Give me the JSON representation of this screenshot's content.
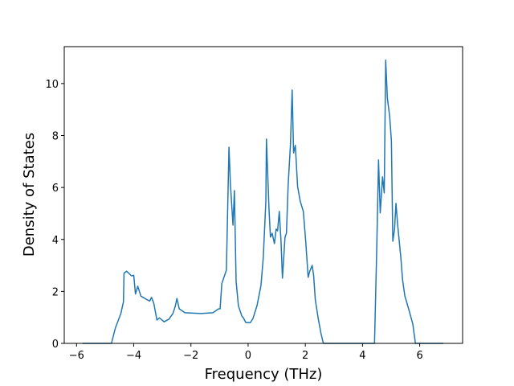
{
  "chart_data": {
    "type": "line",
    "xlabel": "Frequency (THz)",
    "ylabel": "Density of States",
    "color": "#1f77b4",
    "x": [
      -5.79,
      -4.78,
      -4.64,
      -4.45,
      -4.36,
      -4.34,
      -4.25,
      -4.08,
      -4.0,
      -3.94,
      -3.86,
      -3.75,
      -3.52,
      -3.44,
      -3.38,
      -3.3,
      -3.19,
      -3.1,
      -2.94,
      -2.77,
      -2.63,
      -2.55,
      -2.49,
      -2.41,
      -2.21,
      -1.65,
      -1.23,
      -1.03,
      -0.98,
      -0.92,
      -0.76,
      -0.67,
      -0.62,
      -0.53,
      -0.48,
      -0.42,
      -0.34,
      -0.22,
      -0.17,
      -0.08,
      0.08,
      0.17,
      0.31,
      0.45,
      0.53,
      0.62,
      0.64,
      0.73,
      0.78,
      0.84,
      0.92,
      0.98,
      1.03,
      1.09,
      1.15,
      1.2,
      1.29,
      1.34,
      1.4,
      1.48,
      1.54,
      1.59,
      1.65,
      1.73,
      1.82,
      1.93,
      2.01,
      2.1,
      2.15,
      2.24,
      2.29,
      2.35,
      2.46,
      2.55,
      2.63,
      4.42,
      4.5,
      4.56,
      4.62,
      4.7,
      4.76,
      4.81,
      4.87,
      4.95,
      5.01,
      5.06,
      5.12,
      5.17,
      5.23,
      5.34,
      5.4,
      5.48,
      5.62,
      5.76,
      5.85,
      6.83
    ],
    "values": [
      0,
      0,
      0.6,
      1.15,
      1.6,
      2.7,
      2.78,
      2.6,
      2.62,
      1.9,
      2.2,
      1.82,
      1.67,
      1.63,
      1.77,
      1.55,
      0.9,
      0.98,
      0.83,
      0.93,
      1.15,
      1.42,
      1.73,
      1.33,
      1.18,
      1.15,
      1.18,
      1.33,
      1.33,
      2.3,
      2.82,
      7.55,
      6.15,
      4.55,
      5.88,
      2.38,
      1.45,
      1.05,
      0.99,
      0.8,
      0.8,
      0.96,
      1.45,
      2.23,
      3.31,
      5.48,
      7.86,
      5.17,
      4.09,
      4.24,
      3.84,
      4.4,
      4.33,
      5.08,
      3.93,
      2.51,
      4.09,
      4.24,
      6.1,
      7.65,
      9.75,
      7.33,
      7.62,
      6.04,
      5.48,
      5.08,
      3.99,
      2.54,
      2.76,
      3.0,
      2.63,
      1.67,
      0.9,
      0.37,
      0,
      0,
      3.78,
      7.06,
      5.02,
      6.41,
      5.79,
      10.9,
      9.44,
      8.73,
      7.8,
      3.93,
      4.4,
      5.39,
      4.55,
      3.31,
      2.45,
      1.83,
      1.3,
      0.74,
      0,
      0
    ],
    "xlim": [
      -6.43,
      7.5
    ],
    "xticks": [
      {
        "value": -6,
        "label": "−6"
      },
      {
        "value": -4,
        "label": "−4"
      },
      {
        "value": -2,
        "label": "−2"
      },
      0,
      2,
      4,
      6
    ],
    "ylim": [
      0,
      11.42
    ],
    "yticks": [
      0,
      2,
      4,
      6,
      8,
      10
    ]
  }
}
